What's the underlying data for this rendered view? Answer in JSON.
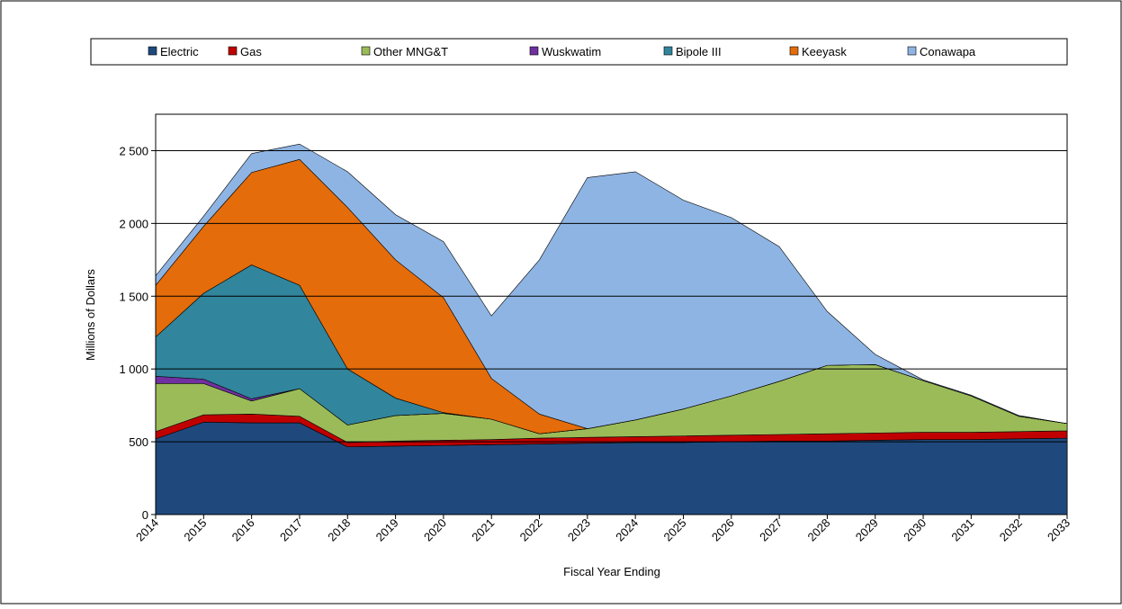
{
  "chart_data": {
    "type": "stacked-area",
    "x_label": "Fiscal Year Ending",
    "y_label": "Millions of Dollars",
    "categories": [
      "2014",
      "2015",
      "2016",
      "2017",
      "2018",
      "2019",
      "2020",
      "2021",
      "2022",
      "2023",
      "2024",
      "2025",
      "2026",
      "2027",
      "2028",
      "2029",
      "2030",
      "2031",
      "2032",
      "2033"
    ],
    "series": [
      {
        "name": "Electric",
        "color": "#1f497d",
        "values": [
          520,
          635,
          630,
          630,
          465,
          470,
          475,
          480,
          485,
          490,
          495,
          495,
          500,
          505,
          505,
          510,
          515,
          515,
          520,
          525
        ]
      },
      {
        "name": "Gas",
        "color": "#c00000",
        "values": [
          50,
          50,
          60,
          45,
          30,
          35,
          35,
          35,
          40,
          40,
          40,
          45,
          45,
          45,
          50,
          50,
          50,
          50,
          50,
          50
        ]
      },
      {
        "name": "Other MNG&T",
        "color": "#9bbb59",
        "values": [
          330,
          215,
          90,
          190,
          120,
          175,
          185,
          140,
          30,
          60,
          115,
          185,
          270,
          365,
          470,
          470,
          355,
          250,
          105,
          50
        ]
      },
      {
        "name": "Wuskwatim",
        "color": "#7030a0",
        "values": [
          50,
          30,
          15,
          0,
          0,
          0,
          0,
          0,
          0,
          0,
          0,
          0,
          0,
          0,
          0,
          0,
          0,
          0,
          0,
          0
        ]
      },
      {
        "name": "Bipole III",
        "color": "#31859c",
        "values": [
          270,
          590,
          920,
          710,
          385,
          120,
          5,
          0,
          0,
          0,
          0,
          0,
          0,
          0,
          0,
          0,
          0,
          0,
          0,
          0
        ]
      },
      {
        "name": "Keeyask",
        "color": "#e46c0a",
        "values": [
          355,
          460,
          635,
          865,
          1110,
          950,
          790,
          280,
          135,
          0,
          0,
          0,
          0,
          0,
          0,
          0,
          0,
          0,
          0,
          0
        ]
      },
      {
        "name": "Conawapa",
        "color": "#8eb4e3",
        "values": [
          65,
          70,
          130,
          105,
          245,
          310,
          385,
          430,
          1060,
          1725,
          1705,
          1435,
          1225,
          925,
          370,
          70,
          5,
          5,
          5,
          0
        ]
      }
    ],
    "ylim": [
      0,
      2750
    ],
    "yticks": [
      0,
      500,
      {
        "value": 1000,
        "label": "1 000"
      },
      {
        "value": 1500,
        "label": "1 500"
      },
      {
        "value": 2000,
        "label": "2 000"
      },
      {
        "value": 2500,
        "label": "2 500"
      }
    ],
    "grid": true
  }
}
